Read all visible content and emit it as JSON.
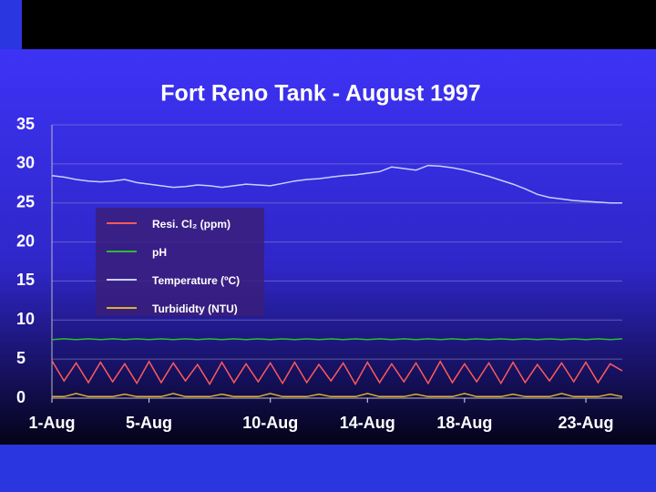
{
  "chart_data": {
    "type": "line",
    "title": "Fort Reno Tank - August 1997",
    "x": [
      1,
      1.5,
      2,
      2.5,
      3,
      3.5,
      4,
      4.5,
      5,
      5.5,
      6,
      6.5,
      7,
      7.5,
      8,
      8.5,
      9,
      9.5,
      10,
      10.5,
      11,
      11.5,
      12,
      12.5,
      13,
      13.5,
      14,
      14.5,
      15,
      15.5,
      16,
      16.5,
      17,
      17.5,
      18,
      18.5,
      19,
      19.5,
      20,
      20.5,
      21,
      21.5,
      22,
      22.5,
      23,
      23.5,
      24,
      24.5
    ],
    "xlim": [
      1,
      24.5
    ],
    "xticks": [
      {
        "value": 1,
        "label": "1-Aug"
      },
      {
        "value": 5,
        "label": "5-Aug"
      },
      {
        "value": 10,
        "label": "10-Aug"
      },
      {
        "value": 14,
        "label": "14-Aug"
      },
      {
        "value": 18,
        "label": "18-Aug"
      },
      {
        "value": 23,
        "label": "23-Aug"
      }
    ],
    "ylim": [
      0,
      35
    ],
    "yticks": [
      0,
      5,
      10,
      15,
      20,
      25,
      30,
      35
    ],
    "grid": true,
    "series": [
      {
        "name": "Resi. Cl₂ (ppm)",
        "color": "#ff5a5a",
        "values": [
          4.8,
          2.2,
          4.5,
          2.0,
          4.6,
          2.1,
          4.4,
          1.9,
          4.7,
          2.0,
          4.5,
          2.2,
          4.3,
          1.8,
          4.6,
          2.0,
          4.4,
          2.1,
          4.5,
          1.9,
          4.6,
          2.0,
          4.3,
          2.2,
          4.5,
          1.8,
          4.6,
          2.0,
          4.4,
          2.1,
          4.5,
          1.9,
          4.7,
          2.0,
          4.4,
          2.1,
          4.5,
          1.9,
          4.6,
          2.0,
          4.3,
          2.2,
          4.5,
          2.1,
          4.6,
          2.0,
          4.4,
          3.5
        ]
      },
      {
        "name": "pH",
        "color": "#2dbb2d",
        "values": [
          7.5,
          7.6,
          7.5,
          7.6,
          7.5,
          7.6,
          7.5,
          7.6,
          7.5,
          7.6,
          7.5,
          7.6,
          7.5,
          7.6,
          7.5,
          7.6,
          7.5,
          7.6,
          7.5,
          7.6,
          7.5,
          7.6,
          7.5,
          7.6,
          7.5,
          7.6,
          7.5,
          7.6,
          7.5,
          7.6,
          7.5,
          7.6,
          7.5,
          7.6,
          7.5,
          7.6,
          7.5,
          7.6,
          7.5,
          7.6,
          7.5,
          7.6,
          7.5,
          7.6,
          7.5,
          7.6,
          7.5,
          7.6
        ]
      },
      {
        "name": "Temperature (ºC)",
        "color": "#c8d0ff",
        "values": [
          28.5,
          28.3,
          28.0,
          27.8,
          27.7,
          27.8,
          28.0,
          27.6,
          27.4,
          27.2,
          27.0,
          27.1,
          27.3,
          27.2,
          27.0,
          27.2,
          27.4,
          27.3,
          27.2,
          27.5,
          27.8,
          28.0,
          28.1,
          28.3,
          28.5,
          28.6,
          28.8,
          29.0,
          29.6,
          29.4,
          29.2,
          29.8,
          29.7,
          29.5,
          29.2,
          28.8,
          28.4,
          27.9,
          27.4,
          26.8,
          26.1,
          25.7,
          25.5,
          25.3,
          25.2,
          25.1,
          25.0,
          25.0
        ]
      },
      {
        "name": "Turbididty (NTU)",
        "color": "#e0b030",
        "values": [
          0.2,
          0.2,
          0.6,
          0.2,
          0.2,
          0.2,
          0.5,
          0.2,
          0.2,
          0.2,
          0.6,
          0.2,
          0.2,
          0.2,
          0.5,
          0.2,
          0.2,
          0.2,
          0.6,
          0.2,
          0.2,
          0.2,
          0.5,
          0.2,
          0.2,
          0.2,
          0.6,
          0.2,
          0.2,
          0.2,
          0.5,
          0.2,
          0.2,
          0.2,
          0.6,
          0.2,
          0.2,
          0.2,
          0.5,
          0.2,
          0.2,
          0.2,
          0.6,
          0.2,
          0.2,
          0.2,
          0.5,
          0.2
        ]
      }
    ]
  }
}
